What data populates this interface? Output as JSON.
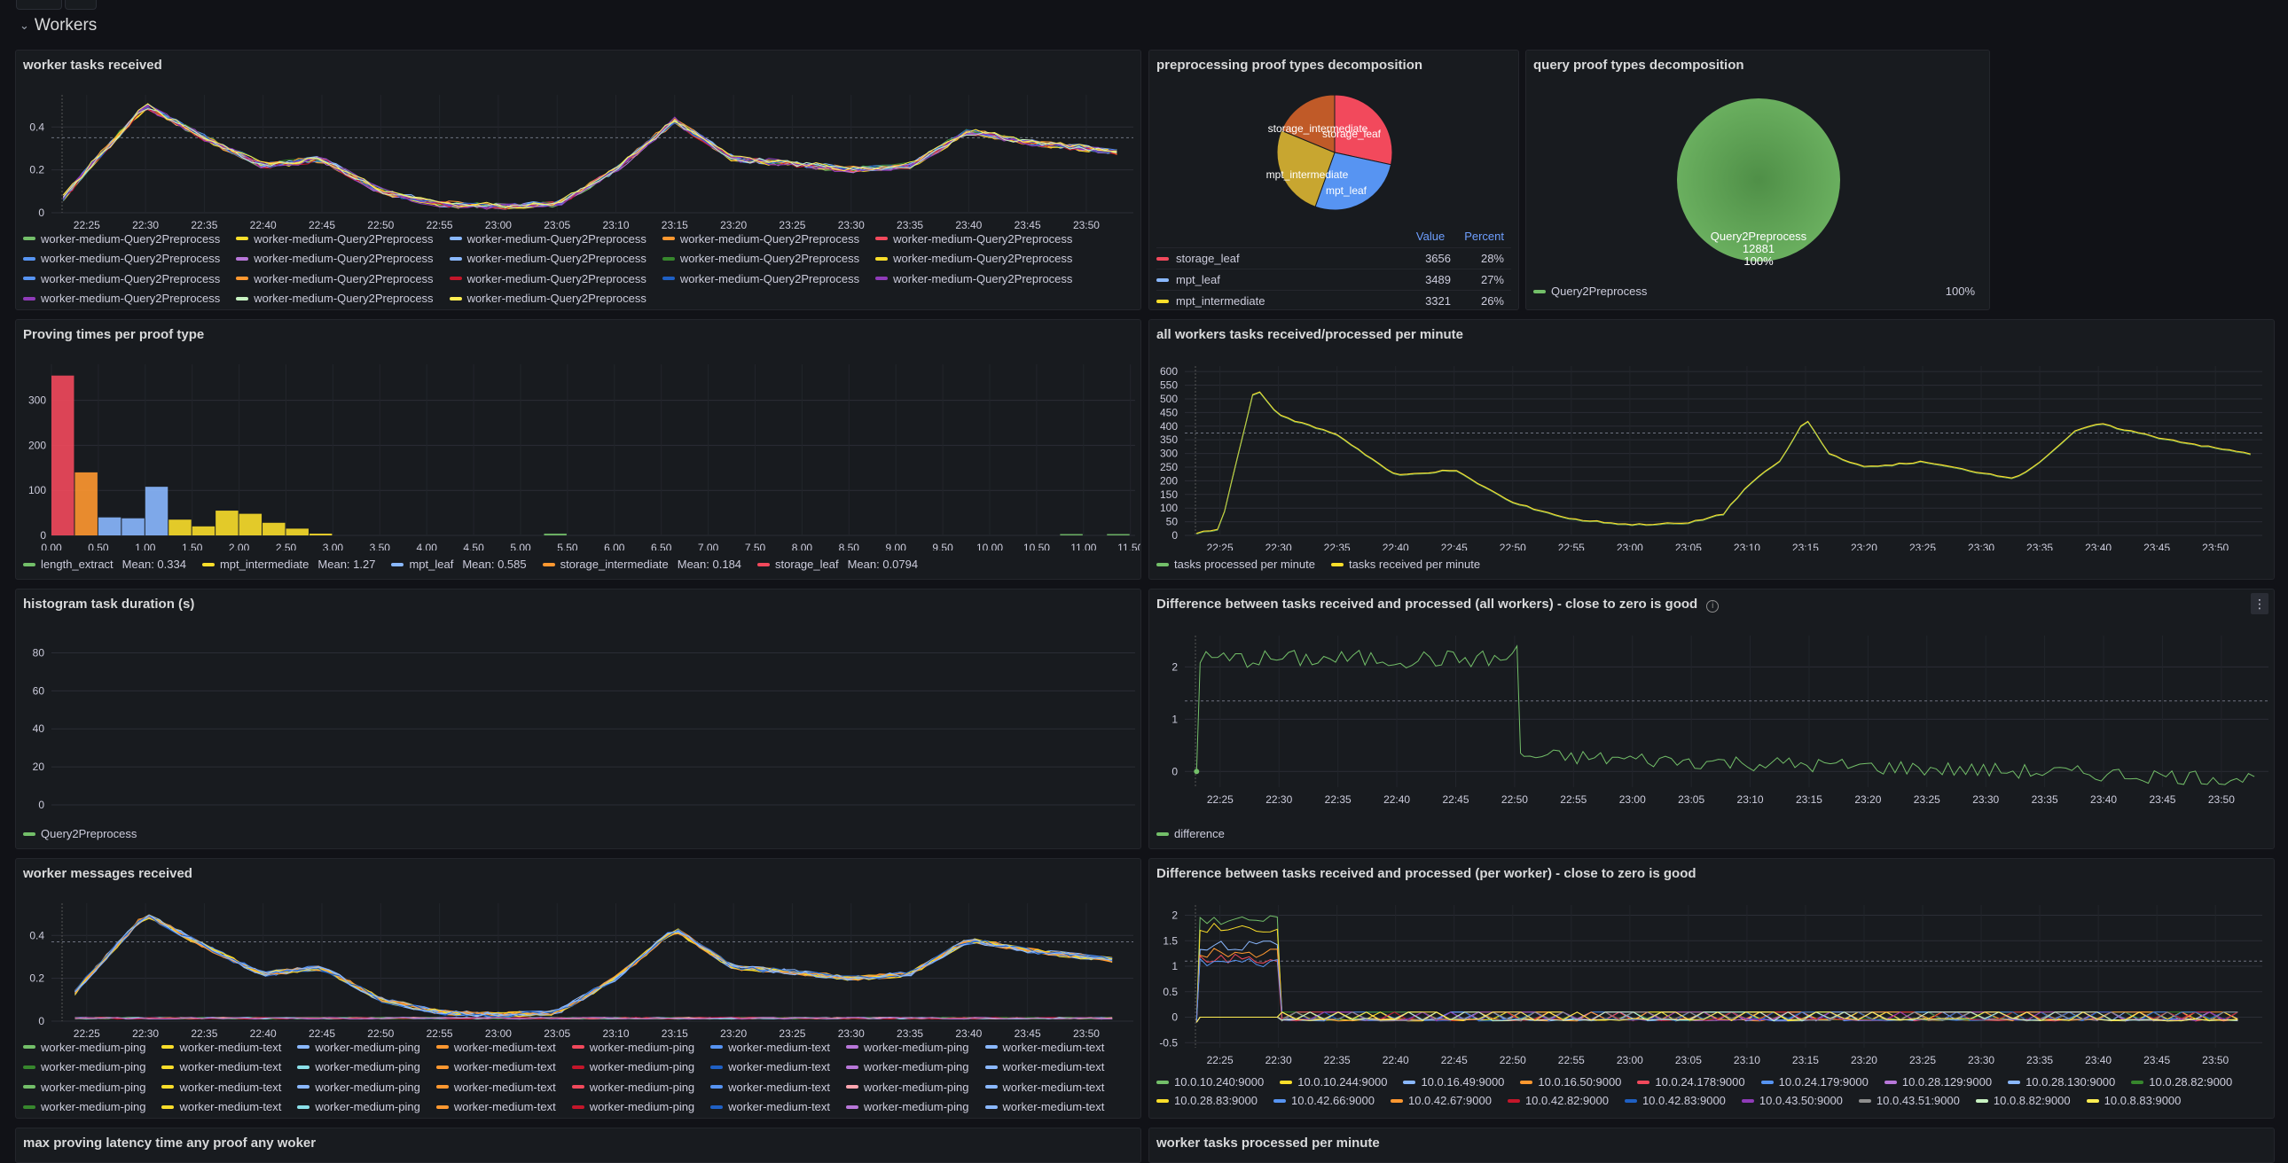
{
  "row": {
    "title": "Workers"
  },
  "colors": {
    "green": "#73bf69",
    "yellow": "#fade2a",
    "blue": "#8ab8ff",
    "orange": "#ff9830",
    "red": "#f2495c",
    "purple": "#b877d9",
    "darkgreen": "#37872d",
    "darkred": "#c4162a",
    "darkblue": "#1f60c4",
    "darkpurple": "#8f3bb8",
    "cyan": "#8ae0e9"
  },
  "time_ticks": [
    "22:25",
    "22:30",
    "22:35",
    "22:40",
    "22:45",
    "22:50",
    "22:55",
    "23:00",
    "23:05",
    "23:10",
    "23:15",
    "23:20",
    "23:25",
    "23:30",
    "23:35",
    "23:40",
    "23:45",
    "23:50"
  ],
  "panels": {
    "worker_tasks": {
      "title": "worker tasks received",
      "legend": [
        {
          "label": "worker-medium-Query2Preprocess",
          "color": "#73bf69"
        },
        {
          "label": "worker-medium-Query2Preprocess",
          "color": "#fade2a"
        },
        {
          "label": "worker-medium-Query2Preprocess",
          "color": "#8ab8ff"
        },
        {
          "label": "worker-medium-Query2Preprocess",
          "color": "#ff9830"
        },
        {
          "label": "worker-medium-Query2Preprocess",
          "color": "#f2495c"
        },
        {
          "label": "worker-medium-Query2Preprocess",
          "color": "#5794f2"
        },
        {
          "label": "worker-medium-Query2Preprocess",
          "color": "#b877d9"
        },
        {
          "label": "worker-medium-Query2Preprocess",
          "color": "#8ab8ff"
        },
        {
          "label": "worker-medium-Query2Preprocess",
          "color": "#37872d"
        },
        {
          "label": "worker-medium-Query2Preprocess",
          "color": "#fade2a"
        },
        {
          "label": "worker-medium-Query2Preprocess",
          "color": "#5794f2"
        },
        {
          "label": "worker-medium-Query2Preprocess",
          "color": "#ff9830"
        },
        {
          "label": "worker-medium-Query2Preprocess",
          "color": "#c4162a"
        },
        {
          "label": "worker-medium-Query2Preprocess",
          "color": "#1f60c4"
        },
        {
          "label": "worker-medium-Query2Preprocess",
          "color": "#8f3bb8"
        },
        {
          "label": "worker-medium-Query2Preprocess",
          "color": "#8f3bb8"
        },
        {
          "label": "worker-medium-Query2Preprocess",
          "color": "#c8f2c2"
        },
        {
          "label": "worker-medium-Query2Preprocess",
          "color": "#ffee52"
        }
      ]
    },
    "preprocessing_pie": {
      "title": "preprocessing proof types decomposition",
      "table_value_header": "Value",
      "table_percent_header": "Percent",
      "rows": [
        {
          "name": "storage_leaf",
          "value": "3656",
          "percent": "28%",
          "color": "#f2495c"
        },
        {
          "name": "mpt_leaf",
          "value": "3489",
          "percent": "27%",
          "color": "#8ab8ff"
        },
        {
          "name": "mpt_intermediate",
          "value": "3321",
          "percent": "26%",
          "color": "#fade2a"
        }
      ],
      "slice_labels": [
        "storage_intermediate",
        "storage_leaf",
        "mpt_intermediate",
        "mpt_leaf"
      ]
    },
    "query_pie": {
      "title": "query proof types decomposition",
      "slice_name": "Query2Preprocess",
      "slice_value": "12881",
      "slice_percent": "100%",
      "legend_name": "Query2Preprocess",
      "legend_percent": "100%"
    },
    "proving_times": {
      "title": "Proving times per proof type",
      "legend": [
        {
          "label": "length_extract",
          "mean": "Mean: 0.334",
          "color": "#73bf69"
        },
        {
          "label": "mpt_intermediate",
          "mean": "Mean: 1.27",
          "color": "#fade2a"
        },
        {
          "label": "mpt_leaf",
          "mean": "Mean: 0.585",
          "color": "#8ab8ff"
        },
        {
          "label": "storage_intermediate",
          "mean": "Mean: 0.184",
          "color": "#ff9830"
        },
        {
          "label": "storage_leaf",
          "mean": "Mean: 0.0794",
          "color": "#f2495c"
        }
      ]
    },
    "all_workers": {
      "title": "all workers tasks received/processed per minute",
      "legend": [
        {
          "label": "tasks processed per minute",
          "color": "#73bf69"
        },
        {
          "label": "tasks received per minute",
          "color": "#fade2a"
        }
      ]
    },
    "histogram": {
      "title": "histogram task duration (s)",
      "legend": [
        {
          "label": "Query2Preprocess",
          "color": "#73bf69"
        }
      ]
    },
    "difference_all": {
      "title": "Difference between tasks received and processed (all workers) - close to zero is good",
      "info_icon": "i",
      "menu_icon": "⋮",
      "legend": [
        {
          "label": "difference",
          "color": "#73bf69"
        }
      ]
    },
    "worker_messages": {
      "title": "worker messages received",
      "legend": [
        {
          "label": "worker-medium-ping",
          "color": "#73bf69"
        },
        {
          "label": "worker-medium-text",
          "color": "#fade2a"
        },
        {
          "label": "worker-medium-ping",
          "color": "#8ab8ff"
        },
        {
          "label": "worker-medium-text",
          "color": "#ff9830"
        },
        {
          "label": "worker-medium-ping",
          "color": "#f2495c"
        },
        {
          "label": "worker-medium-text",
          "color": "#5794f2"
        },
        {
          "label": "worker-medium-ping",
          "color": "#b877d9"
        },
        {
          "label": "worker-medium-text",
          "color": "#8ab8ff"
        },
        {
          "label": "worker-medium-ping",
          "color": "#37872d"
        },
        {
          "label": "worker-medium-text",
          "color": "#fade2a"
        },
        {
          "label": "worker-medium-ping",
          "color": "#8ae0e9"
        },
        {
          "label": "worker-medium-text",
          "color": "#ff9830"
        },
        {
          "label": "worker-medium-ping",
          "color": "#c4162a"
        },
        {
          "label": "worker-medium-text",
          "color": "#1f60c4"
        },
        {
          "label": "worker-medium-ping",
          "color": "#b877d9"
        },
        {
          "label": "worker-medium-text",
          "color": "#8ab8ff"
        },
        {
          "label": "worker-medium-ping",
          "color": "#73bf69"
        },
        {
          "label": "worker-medium-text",
          "color": "#fade2a"
        },
        {
          "label": "worker-medium-ping",
          "color": "#8ab8ff"
        },
        {
          "label": "worker-medium-text",
          "color": "#ff9830"
        },
        {
          "label": "worker-medium-ping",
          "color": "#f2495c"
        },
        {
          "label": "worker-medium-text",
          "color": "#5794f2"
        },
        {
          "label": "worker-medium-ping",
          "color": "#ffa6b0"
        },
        {
          "label": "worker-medium-text",
          "color": "#8ab8ff"
        },
        {
          "label": "worker-medium-ping",
          "color": "#37872d"
        },
        {
          "label": "worker-medium-text",
          "color": "#fade2a"
        },
        {
          "label": "worker-medium-ping",
          "color": "#8ae0e9"
        },
        {
          "label": "worker-medium-text",
          "color": "#ff9830"
        },
        {
          "label": "worker-medium-ping",
          "color": "#c4162a"
        },
        {
          "label": "worker-medium-text",
          "color": "#1f60c4"
        },
        {
          "label": "worker-medium-ping",
          "color": "#b877d9"
        },
        {
          "label": "worker-medium-text",
          "color": "#8ab8ff"
        }
      ]
    },
    "difference_per_worker": {
      "title": "Difference between tasks received and processed (per worker) - close to zero is good",
      "legend": [
        {
          "label": "10.0.10.240:9000",
          "color": "#73bf69"
        },
        {
          "label": "10.0.10.244:9000",
          "color": "#fade2a"
        },
        {
          "label": "10.0.16.49:9000",
          "color": "#8ab8ff"
        },
        {
          "label": "10.0.16.50:9000",
          "color": "#ff9830"
        },
        {
          "label": "10.0.24.178:9000",
          "color": "#f2495c"
        },
        {
          "label": "10.0.24.179:9000",
          "color": "#5794f2"
        },
        {
          "label": "10.0.28.129:9000",
          "color": "#b877d9"
        },
        {
          "label": "10.0.28.130:9000",
          "color": "#8ab8ff"
        },
        {
          "label": "10.0.28.82:9000",
          "color": "#37872d"
        },
        {
          "label": "10.0.28.83:9000",
          "color": "#fade2a"
        },
        {
          "label": "10.0.42.66:9000",
          "color": "#5794f2"
        },
        {
          "label": "10.0.42.67:9000",
          "color": "#ff9830"
        },
        {
          "label": "10.0.42.82:9000",
          "color": "#c4162a"
        },
        {
          "label": "10.0.42.83:9000",
          "color": "#1f60c4"
        },
        {
          "label": "10.0.43.50:9000",
          "color": "#8f3bb8"
        },
        {
          "label": "10.0.43.51:9000",
          "color": "#8e8e8e"
        },
        {
          "label": "10.0.8.82:9000",
          "color": "#c8f2c2"
        },
        {
          "label": "10.0.8.83:9000",
          "color": "#ffee52"
        }
      ]
    },
    "max_latency": {
      "title": "max proving  latency time any proof any woker"
    },
    "worker_processed": {
      "title": "worker tasks processed per minute"
    }
  },
  "chart_data": [
    {
      "type": "line",
      "title": "worker tasks received",
      "x": [
        "22:22",
        "22:25",
        "22:30",
        "22:35",
        "22:40",
        "22:45",
        "22:50",
        "22:55",
        "23:00",
        "23:05",
        "23:10",
        "23:15",
        "23:20",
        "23:25",
        "23:30",
        "23:35",
        "23:40",
        "23:45",
        "23:50",
        "23:53"
      ],
      "series": [
        {
          "values": [
            0,
            0.2,
            0.5,
            0.35,
            0.22,
            0.25,
            0.1,
            0.04,
            0.03,
            0.04,
            0.2,
            0.43,
            0.25,
            0.23,
            0.2,
            0.22,
            0.38,
            0.33,
            0.3,
            0.28
          ]
        }
      ],
      "ylim": [
        0,
        0.55
      ],
      "yticks": [
        0,
        0.2,
        0.4
      ],
      "threshold": 0.35
    },
    {
      "type": "pie",
      "title": "preprocessing proof types decomposition",
      "labels": [
        "storage_leaf",
        "mpt_leaf",
        "mpt_intermediate",
        "storage_intermediate"
      ],
      "values": [
        3656,
        3489,
        3321,
        2415
      ]
    },
    {
      "type": "pie",
      "title": "query proof types decomposition",
      "labels": [
        "Query2Preprocess"
      ],
      "values": [
        12881
      ]
    },
    {
      "type": "bar",
      "title": "Proving times per proof type",
      "xticks": [
        "0.00",
        "0.50",
        "1.00",
        "1.50",
        "2.00",
        "2.50",
        "3.00",
        "3.50",
        "4.00",
        "4.50",
        "5.00",
        "5.50",
        "6.00",
        "6.50",
        "7.00",
        "7.50",
        "8.00",
        "8.50",
        "9.00",
        "9.50",
        "10.00",
        "10.50",
        "11.00",
        "11.50"
      ],
      "yticks": [
        0,
        100,
        200,
        300
      ],
      "ylim": [
        0,
        380
      ],
      "bars": [
        {
          "x0": 0,
          "x1": 0.25,
          "value": 355,
          "series": "storage_leaf"
        },
        {
          "x0": 0.25,
          "x1": 0.5,
          "value": 140,
          "series": "storage_intermediate"
        },
        {
          "x0": 0.5,
          "x1": 0.75,
          "value": 40,
          "series": "mpt_leaf"
        },
        {
          "x0": 0.75,
          "x1": 1.0,
          "value": 38,
          "series": "mpt_leaf"
        },
        {
          "x0": 1.0,
          "x1": 1.25,
          "value": 108,
          "series": "mpt_leaf"
        },
        {
          "x0": 1.25,
          "x1": 1.5,
          "value": 35,
          "series": "mpt_intermediate"
        },
        {
          "x0": 1.5,
          "x1": 1.75,
          "value": 20,
          "series": "mpt_intermediate"
        },
        {
          "x0": 1.75,
          "x1": 2.0,
          "value": 55,
          "series": "mpt_intermediate"
        },
        {
          "x0": 2.0,
          "x1": 2.25,
          "value": 48,
          "series": "mpt_intermediate"
        },
        {
          "x0": 2.25,
          "x1": 2.5,
          "value": 28,
          "series": "mpt_intermediate"
        },
        {
          "x0": 2.5,
          "x1": 2.75,
          "value": 15,
          "series": "mpt_intermediate"
        },
        {
          "x0": 2.75,
          "x1": 3.0,
          "value": 4,
          "series": "mpt_intermediate"
        },
        {
          "x0": 5.25,
          "x1": 5.5,
          "value": 4,
          "series": "length_extract"
        },
        {
          "x0": 10.75,
          "x1": 11.0,
          "value": 3,
          "series": "length_extract"
        },
        {
          "x0": 11.25,
          "x1": 11.5,
          "value": 3,
          "series": "length_extract"
        }
      ]
    },
    {
      "type": "line",
      "title": "all workers tasks received/processed per minute",
      "x": [
        "22:22",
        "22:25",
        "22:28",
        "22:30",
        "22:35",
        "22:40",
        "22:45",
        "22:50",
        "22:55",
        "23:00",
        "23:05",
        "23:08",
        "23:10",
        "23:13",
        "23:15",
        "23:17",
        "23:20",
        "23:25",
        "23:30",
        "23:33",
        "23:35",
        "23:38",
        "23:40",
        "23:45",
        "23:50",
        "23:53"
      ],
      "series": [
        {
          "values": [
            5,
            20,
            550,
            440,
            370,
            220,
            240,
            120,
            60,
            40,
            45,
            80,
            180,
            280,
            430,
            300,
            250,
            270,
            230,
            210,
            270,
            380,
            410,
            360,
            320,
            300
          ]
        }
      ],
      "ylim": [
        0,
        620
      ],
      "yticks": [
        0,
        50,
        100,
        150,
        200,
        250,
        300,
        350,
        400,
        450,
        500,
        550,
        600
      ],
      "threshold": 375
    },
    {
      "type": "bar",
      "title": "histogram task duration (s)",
      "yticks": [
        0,
        20,
        40,
        60,
        80
      ],
      "ylim": [
        0,
        90
      ]
    },
    {
      "type": "line",
      "title": "Difference between tasks received and processed (all workers) - close to zero is good",
      "yticks": [
        0,
        1,
        2
      ],
      "ylim": [
        -0.3,
        2.6
      ],
      "threshold": 1.35
    },
    {
      "type": "line",
      "title": "worker messages received",
      "yticks": [
        0,
        0.2,
        0.4
      ],
      "ylim": [
        0,
        0.55
      ],
      "threshold": 0.37
    },
    {
      "type": "line",
      "title": "Difference between tasks received and processed (per worker) - close to zero is good",
      "yticks": [
        -0.5,
        0,
        0.5,
        1,
        1.5,
        2
      ],
      "ylim": [
        -0.6,
        2.2
      ],
      "threshold": 1.1
    }
  ]
}
